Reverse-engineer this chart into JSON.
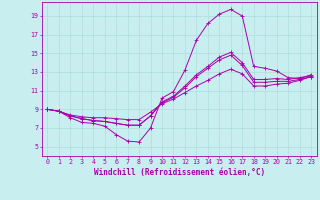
{
  "xlabel": "Windchill (Refroidissement éolien,°C)",
  "background_color": "#c8eef0",
  "line_color": "#aa00aa",
  "grid_color": "#b0dde0",
  "xlim": [
    -0.5,
    23.5
  ],
  "ylim": [
    4.0,
    20.5
  ],
  "xticks": [
    0,
    1,
    2,
    3,
    4,
    5,
    6,
    7,
    8,
    9,
    10,
    11,
    12,
    13,
    14,
    15,
    16,
    17,
    18,
    19,
    20,
    21,
    22,
    23
  ],
  "yticks": [
    5,
    7,
    9,
    11,
    13,
    15,
    17,
    19
  ],
  "series": [
    [
      9.0,
      8.8,
      8.1,
      7.6,
      7.5,
      7.2,
      6.3,
      5.6,
      5.5,
      7.0,
      10.2,
      10.9,
      13.2,
      16.4,
      18.2,
      19.2,
      19.7,
      19.0,
      13.6,
      13.4,
      13.1,
      12.4,
      12.3,
      12.7
    ],
    [
      9.0,
      8.8,
      8.4,
      8.2,
      8.1,
      8.1,
      8.0,
      7.9,
      7.9,
      8.7,
      9.6,
      10.1,
      10.8,
      11.5,
      12.1,
      12.8,
      13.3,
      12.8,
      11.5,
      11.5,
      11.7,
      11.8,
      12.1,
      12.5
    ],
    [
      9.0,
      8.8,
      8.3,
      8.0,
      7.8,
      7.7,
      7.5,
      7.3,
      7.3,
      8.3,
      9.7,
      10.3,
      11.3,
      12.5,
      13.4,
      14.3,
      14.8,
      13.7,
      11.9,
      11.9,
      12.0,
      12.0,
      12.2,
      12.5
    ],
    [
      9.0,
      8.8,
      8.3,
      8.0,
      7.8,
      7.7,
      7.5,
      7.3,
      7.3,
      8.3,
      9.8,
      10.4,
      11.5,
      12.7,
      13.6,
      14.6,
      15.1,
      14.0,
      12.2,
      12.2,
      12.3,
      12.2,
      12.4,
      12.6
    ]
  ],
  "xlabel_fontsize": 5.5,
  "tick_fontsize": 4.8,
  "marker_size": 1.8,
  "line_width": 0.7
}
